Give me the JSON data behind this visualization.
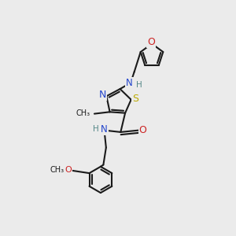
{
  "bg_color": "#ebebeb",
  "bond_color": "#1a1a1a",
  "N_color": "#2244cc",
  "O_color": "#cc2222",
  "S_color": "#bbaa00",
  "H_color": "#558888",
  "font_size": 7.5,
  "bond_lw": 1.5,
  "fig_w": 3.0,
  "fig_h": 3.0,
  "dpi": 100,
  "xlim": [
    0,
    10
  ],
  "ylim": [
    0,
    10
  ]
}
